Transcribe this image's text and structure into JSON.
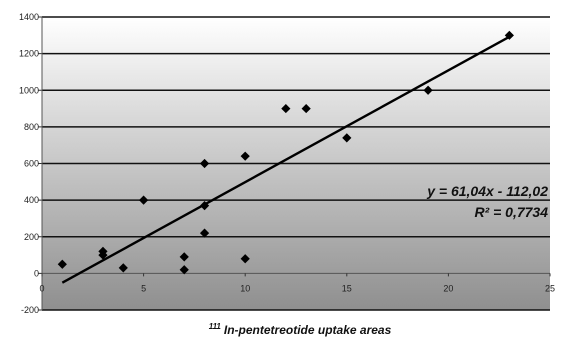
{
  "chart_data": {
    "type": "scatter",
    "title": "",
    "xlabel": "In-pentetreotide uptake areas",
    "xlabel_prefix": "111",
    "ylabel": "",
    "xlim": [
      0,
      25
    ],
    "ylim": [
      -200,
      1400
    ],
    "x_ticks": [
      "0",
      "5",
      "10",
      "15",
      "20",
      "25"
    ],
    "y_ticks": [
      "-200",
      "0",
      "200",
      "400",
      "600",
      "800",
      "1000",
      "1200",
      "1400"
    ],
    "grid": true,
    "series": [
      {
        "points": [
          {
            "x": 1,
            "y": 50
          },
          {
            "x": 3,
            "y": 100
          },
          {
            "x": 3,
            "y": 120
          },
          {
            "x": 4,
            "y": 30
          },
          {
            "x": 5,
            "y": 400
          },
          {
            "x": 7,
            "y": 20
          },
          {
            "x": 7,
            "y": 90
          },
          {
            "x": 8,
            "y": 220
          },
          {
            "x": 8,
            "y": 370
          },
          {
            "x": 8,
            "y": 600
          },
          {
            "x": 10,
            "y": 80
          },
          {
            "x": 10,
            "y": 640
          },
          {
            "x": 12,
            "y": 900
          },
          {
            "x": 13,
            "y": 900
          },
          {
            "x": 15,
            "y": 740
          },
          {
            "x": 19,
            "y": 1000
          },
          {
            "x": 23,
            "y": 1300
          }
        ]
      }
    ],
    "trendline": {
      "slope": 61.04,
      "intercept": -112.02,
      "x_range": [
        1,
        23
      ]
    },
    "annotations": [
      "y = 61,04x - 112,02",
      "R² = 0,7734"
    ]
  }
}
